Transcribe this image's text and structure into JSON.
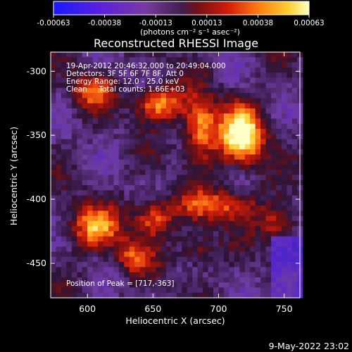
{
  "chart_data": {
    "type": "heatmap",
    "title": "Reconstructed RHESSI Image",
    "xlabel": "Heliocentric X (arcsec)",
    "ylabel": "Heliocentric Y (arcsec)",
    "xlim": [
      572,
      762
    ],
    "ylim": [
      -477,
      -285
    ],
    "x_ticks": [
      600,
      650,
      700,
      750
    ],
    "y_ticks": [
      -300,
      -350,
      -400,
      -450
    ],
    "colorbar": {
      "ticks": [
        "-0.00063",
        "-0.00038",
        "-0.00013",
        "0.00013",
        "0.00038",
        "0.00063"
      ],
      "range": [
        -0.00063,
        0.00063
      ],
      "unit_label": "(photons cm⁻² s⁻¹ asec⁻²)"
    },
    "info_lines": [
      "19-Apr-2012 20:46:32.000 to 20:49:04.000",
      "Detectors: 3F 5F 6F 7F 8F, Att 0",
      "Energy Range: 12.0 - 25.0 keV",
      "Clean     Total counts: 1.66E+03"
    ],
    "peak_label": "Position of Peak = [717,-363]",
    "peak_position": [
      717,
      -363
    ],
    "emission_features": [
      {
        "x": 718,
        "y": -350,
        "sx": 12,
        "sy": 16,
        "amp": 1.0
      },
      {
        "x": 686,
        "y": -345,
        "sx": 9,
        "sy": 17,
        "amp": 0.75
      },
      {
        "x": 654,
        "y": -325,
        "sx": 12,
        "sy": 9,
        "amp": 0.75
      },
      {
        "x": 603,
        "y": -315,
        "sx": 11,
        "sy": 9,
        "amp": 0.55
      },
      {
        "x": 700,
        "y": -405,
        "sx": 22,
        "sy": 9,
        "amp": 0.55
      },
      {
        "x": 605,
        "y": -422,
        "sx": 14,
        "sy": 12,
        "amp": 0.65
      },
      {
        "x": 650,
        "y": -415,
        "sx": 10,
        "sy": 10,
        "amp": 0.6
      },
      {
        "x": 635,
        "y": -445,
        "sx": 10,
        "sy": 10,
        "amp": 0.5
      },
      {
        "x": 745,
        "y": -420,
        "sx": 10,
        "sy": 10,
        "amp": 0.45
      },
      {
        "x": 685,
        "y": -440,
        "sx": 10,
        "sy": 9,
        "amp": 0.35
      }
    ]
  },
  "footer": {
    "date": "9-May-2022 23:02"
  },
  "colors": {
    "background": "#000000",
    "text": "#ffffff"
  }
}
